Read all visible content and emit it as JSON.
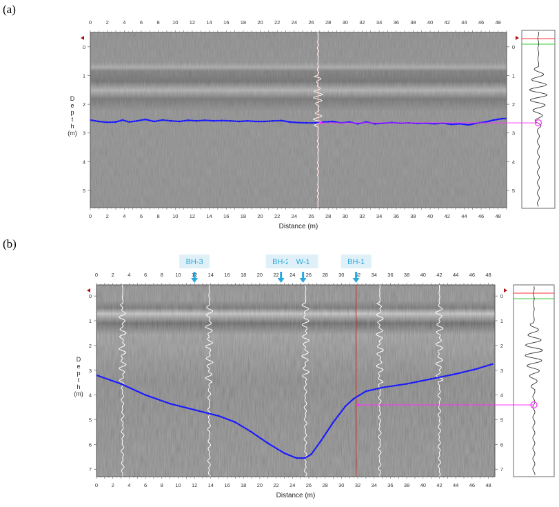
{
  "figure": {
    "panel_a_label": "(a)",
    "panel_b_label": "(b)"
  },
  "colors": {
    "profile_curve": "#1a1aff",
    "marker": "#ff33ff",
    "trace": "#ffffff",
    "cursor_a": "#ffb0b0",
    "cursor_b": "#cc2222",
    "callout_bg": "#e0f0f8",
    "callout_text": "#2aa6d8",
    "arrow": "#29a8e0",
    "start_marker": "#b01010",
    "wiggle_line_red": "#ff3333",
    "wiggle_line_green": "#33cc33"
  },
  "chart_data": [
    {
      "type": "line",
      "panel": "(a)",
      "xlabel": "Distance  (m)",
      "ylabel": "D e p t h\n(m)",
      "xlim": [
        0,
        49
      ],
      "ylim": [
        5.6,
        -0.5
      ],
      "x_ticks": [
        "0",
        "2",
        "4",
        "6",
        "8",
        "10",
        "12",
        "14",
        "16",
        "18",
        "20",
        "22",
        "24",
        "26",
        "28",
        "30",
        "32",
        "34",
        "36",
        "38",
        "40",
        "42",
        "44",
        "46",
        "48"
      ],
      "y_ticks": [
        "0",
        "1",
        "2",
        "3",
        "4",
        "5"
      ],
      "wiggle_y_ticks": [
        "0",
        "1",
        "2",
        "3",
        "4",
        "5"
      ],
      "cursor_x": 26.8,
      "marker_depth": 2.65,
      "series": [
        {
          "x": [
            0,
            1,
            2,
            3,
            3.8,
            4.6,
            5.5,
            6.5,
            7.5,
            8.5,
            9.5,
            10.5,
            11.5,
            12.5,
            13.5,
            14.5,
            15.5,
            16.5,
            17.5,
            18.5,
            19.5,
            20.5,
            21.5,
            22.5,
            23.5,
            24.5,
            25.5,
            26.5,
            27.5,
            28.5,
            29.5,
            30.5,
            31.5,
            32.5,
            33.5,
            34.5,
            35.5,
            36.5,
            37.5,
            38.5,
            39.5,
            40.5,
            41.5,
            42.5,
            43.5,
            44.5,
            45.5,
            46.5,
            47.5,
            48.5,
            49
          ],
          "y": [
            2.55,
            2.6,
            2.63,
            2.62,
            2.55,
            2.62,
            2.58,
            2.53,
            2.6,
            2.55,
            2.58,
            2.6,
            2.56,
            2.58,
            2.56,
            2.58,
            2.57,
            2.58,
            2.6,
            2.58,
            2.6,
            2.6,
            2.58,
            2.57,
            2.62,
            2.64,
            2.65,
            2.65,
            2.62,
            2.6,
            2.65,
            2.62,
            2.68,
            2.62,
            2.68,
            2.66,
            2.64,
            2.66,
            2.65,
            2.67,
            2.66,
            2.68,
            2.66,
            2.7,
            2.68,
            2.72,
            2.66,
            2.62,
            2.55,
            2.5,
            2.5
          ]
        }
      ]
    },
    {
      "type": "line",
      "panel": "(b)",
      "xlabel": "Distance  (m)",
      "ylabel": "D e p t h\n(m)",
      "xlim": [
        0,
        48.8
      ],
      "ylim": [
        7.3,
        -0.45
      ],
      "x_ticks": [
        "0",
        "2",
        "4",
        "6",
        "8",
        "10",
        "12",
        "14",
        "16",
        "18",
        "20",
        "22",
        "24",
        "26",
        "28",
        "30",
        "32",
        "34",
        "36",
        "38",
        "40",
        "42",
        "44",
        "46",
        "48"
      ],
      "y_ticks": [
        "0",
        "1",
        "2",
        "3",
        "4",
        "5",
        "6",
        "7"
      ],
      "wiggle_y_ticks": [
        "0",
        "1",
        "2",
        "3",
        "4",
        "5",
        "6",
        "7"
      ],
      "cursor_x": 31.8,
      "marker_depth": 4.4,
      "trace_x": [
        3.2,
        13.8,
        25.6,
        34.7,
        42.0
      ],
      "boreholes": [
        {
          "label": "BH-3",
          "x": 12.0
        },
        {
          "label": "BH-2",
          "x": 22.6
        },
        {
          "label": "W-1",
          "x": 25.3
        },
        {
          "label": "BH-1",
          "x": 31.8
        }
      ],
      "series": [
        {
          "x": [
            0,
            3,
            6,
            9,
            12,
            15,
            17,
            19,
            21,
            23,
            24.5,
            25.5,
            26.3,
            27.5,
            29,
            30.5,
            31.5,
            33,
            35,
            38,
            41,
            44,
            46.5,
            48.5
          ],
          "y": [
            3.2,
            3.55,
            4.0,
            4.35,
            4.6,
            4.85,
            5.1,
            5.5,
            5.95,
            6.35,
            6.55,
            6.55,
            6.4,
            5.85,
            5.1,
            4.45,
            4.15,
            3.85,
            3.7,
            3.55,
            3.35,
            3.15,
            2.95,
            2.75
          ]
        }
      ]
    }
  ]
}
